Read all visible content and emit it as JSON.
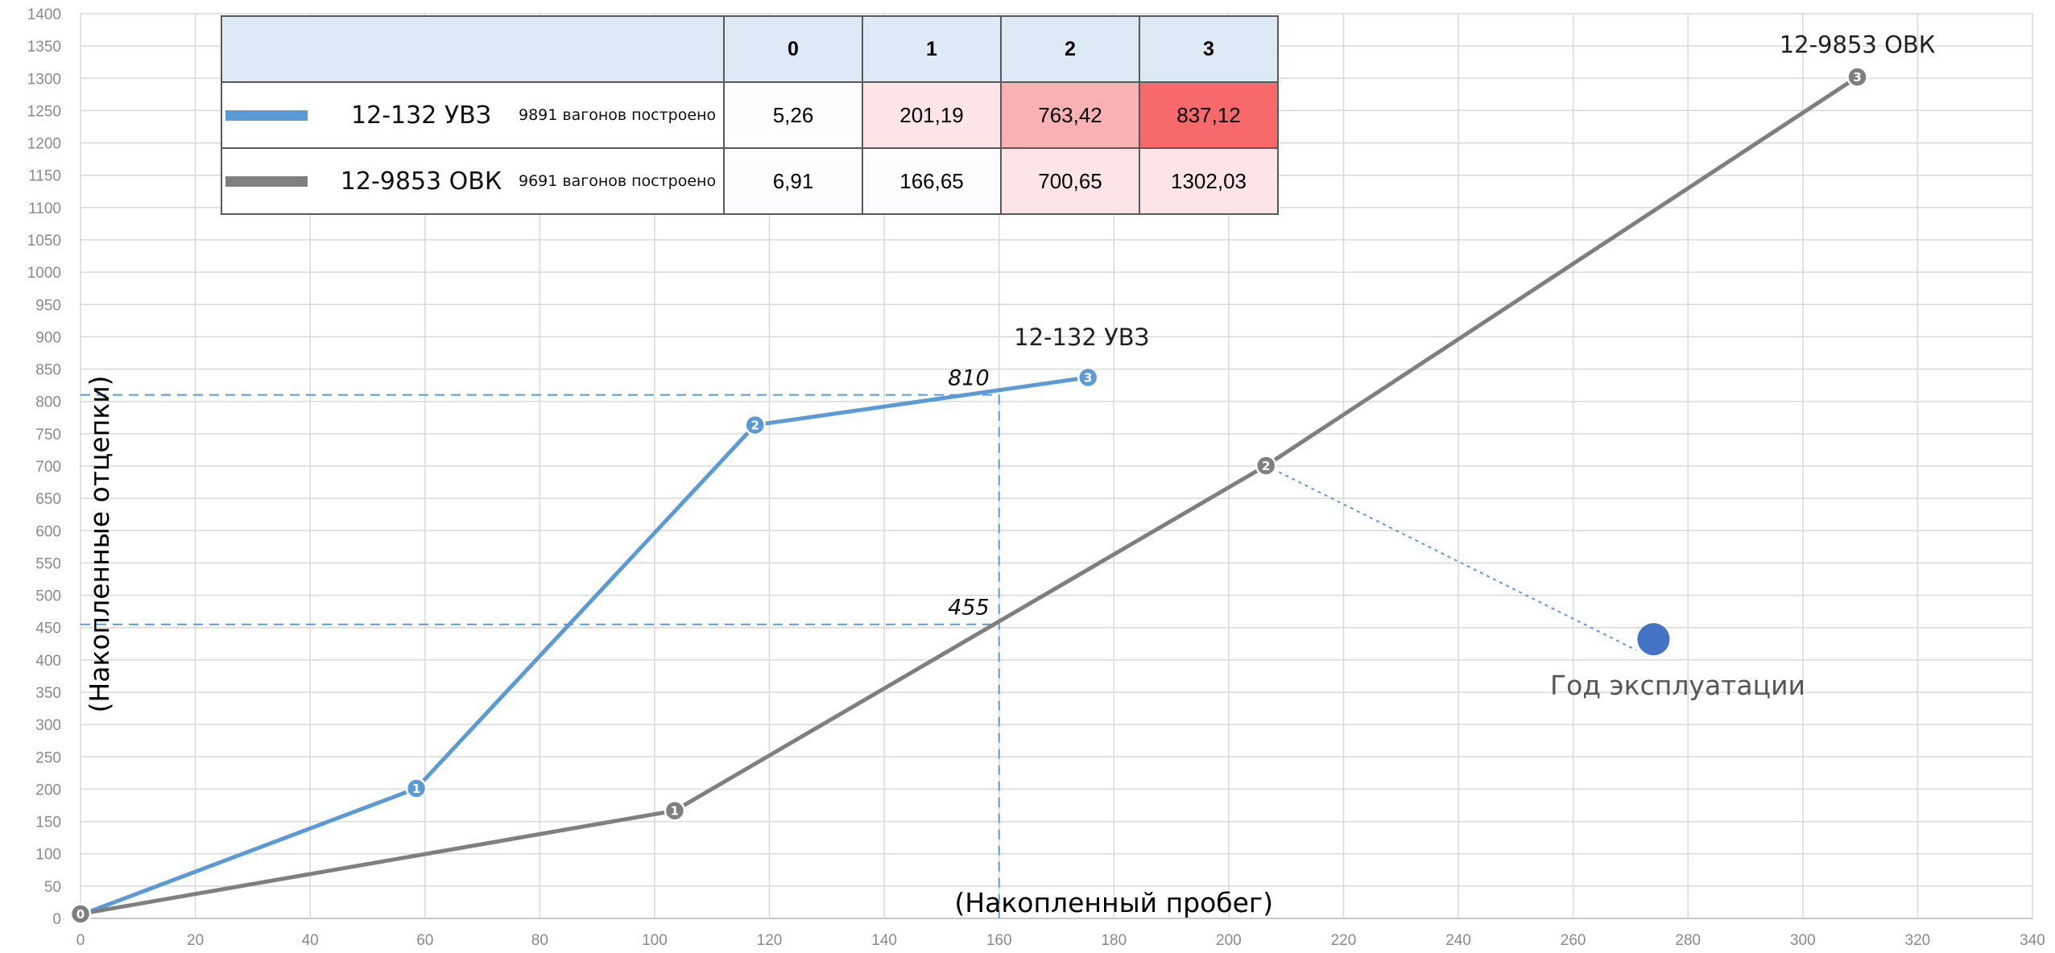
{
  "chart_data": {
    "type": "line",
    "xlabel": "(Накопленный пробег)",
    "ylabel": "(Накопленные отцепки)",
    "xlim": [
      0,
      340
    ],
    "ylim": [
      0,
      1400
    ],
    "x_ticks": [
      0,
      20,
      40,
      60,
      80,
      100,
      120,
      140,
      160,
      180,
      200,
      220,
      240,
      260,
      280,
      300,
      320,
      340
    ],
    "y_ticks": [
      0,
      50,
      100,
      150,
      200,
      250,
      300,
      350,
      400,
      450,
      500,
      550,
      600,
      650,
      700,
      750,
      800,
      850,
      900,
      950,
      1000,
      1050,
      1100,
      1150,
      1200,
      1250,
      1300,
      1350,
      1400
    ],
    "grid": true,
    "series": [
      {
        "name": "12-132 УВЗ",
        "color": "#5b9bd5",
        "points": [
          {
            "x": 0,
            "y": 5.26,
            "label": "0"
          },
          {
            "x": 58.5,
            "y": 201.19,
            "label": "1"
          },
          {
            "x": 117.5,
            "y": 763.42,
            "label": "2"
          },
          {
            "x": 175.5,
            "y": 837.12,
            "label": "3"
          }
        ]
      },
      {
        "name": "12-9853 ОВК",
        "color": "#7f7f7f",
        "points": [
          {
            "x": 0,
            "y": 6.91,
            "label": "0"
          },
          {
            "x": 103.5,
            "y": 166.65,
            "label": "1"
          },
          {
            "x": 206.5,
            "y": 700.65,
            "label": "2"
          },
          {
            "x": 309.5,
            "y": 1302.03,
            "label": "3"
          }
        ]
      }
    ],
    "reference_lines": {
      "x": 160,
      "y_values": [
        {
          "y": 810,
          "label": "810"
        },
        {
          "y": 455,
          "label": "455"
        }
      ]
    },
    "legend_marker_label": "Год эксплуатации",
    "legend_marker_color": "#4472c4",
    "legend_marker_point": {
      "x": 274,
      "y": 432
    },
    "legend_marker_pointer_from": {
      "x": 206.5,
      "y": 700.65
    },
    "legend_marker_pointer_to": {
      "x": 271,
      "y": 415
    }
  },
  "table": {
    "columns": [
      "0",
      "1",
      "2",
      "3"
    ],
    "rows": [
      {
        "series": "12-132 УВЗ",
        "color": "#5b9bd5",
        "built_text": "9891 вагонов построено",
        "values": [
          "5,26",
          "201,19",
          "763,42",
          "837,12"
        ],
        "cell_colors": [
          "#fcfcff",
          "#fce4e7",
          "#f9b1b3",
          "#f8696b"
        ]
      },
      {
        "series": "12-9853 ОВК",
        "color": "#7f7f7f",
        "built_text": "9691 вагонов построено",
        "values": [
          "6,91",
          "166,65",
          "700,65",
          "1302,03"
        ],
        "cell_colors": [
          "#fcfcff",
          "#fcfcff",
          "#fce4e7",
          "#fce4e7"
        ]
      }
    ]
  }
}
